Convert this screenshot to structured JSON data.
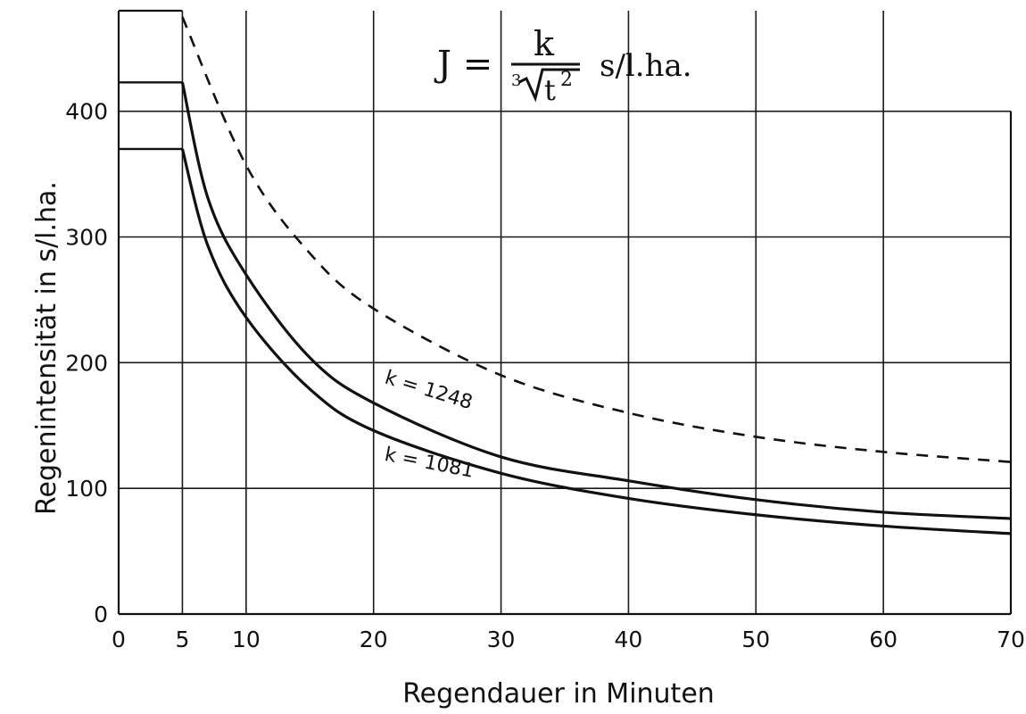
{
  "chart_data": {
    "type": "line",
    "formula": {
      "lhs": "J =",
      "numerator": "k",
      "root_index": "3",
      "radicand": "t",
      "exponent": "2",
      "unit": "s/l.ha."
    },
    "xlabel": "Regendauer in Minuten",
    "ylabel": "Regenintensität in s/l.ha.",
    "xlim": [
      0,
      70
    ],
    "ylim": [
      0,
      480
    ],
    "x_ticks": [
      0,
      5,
      10,
      20,
      30,
      40,
      50,
      60,
      70
    ],
    "x_tick_labels": [
      "0",
      "5",
      "10",
      "20",
      "30",
      "40",
      "50",
      "60",
      "70"
    ],
    "y_ticks": [
      0,
      100,
      200,
      300,
      400
    ],
    "y_tick_labels": [
      "0",
      "100",
      "200",
      "300",
      "400"
    ],
    "grid": true,
    "series": [
      {
        "name": "k = 1248",
        "style": "solid",
        "k": 1248,
        "plateau": 423,
        "x": [
          5,
          7,
          10,
          15,
          20,
          30,
          40,
          50,
          60,
          70
        ],
        "values": [
          423,
          331,
          270,
          204,
          168,
          125,
          106,
          91,
          81,
          76
        ]
      },
      {
        "name": "k = 1081",
        "style": "solid",
        "k": 1081,
        "plateau": 370,
        "x": [
          5,
          7,
          10,
          15,
          20,
          30,
          40,
          50,
          60,
          70
        ],
        "values": [
          370,
          293,
          236,
          179,
          146,
          112,
          92,
          79,
          70,
          64
        ]
      },
      {
        "style": "dashed",
        "plateau": 475,
        "x": [
          5,
          10,
          15,
          20,
          30,
          40,
          50,
          60,
          70
        ],
        "values": [
          475,
          357,
          287,
          243,
          190,
          160,
          141,
          129,
          121
        ]
      }
    ]
  }
}
